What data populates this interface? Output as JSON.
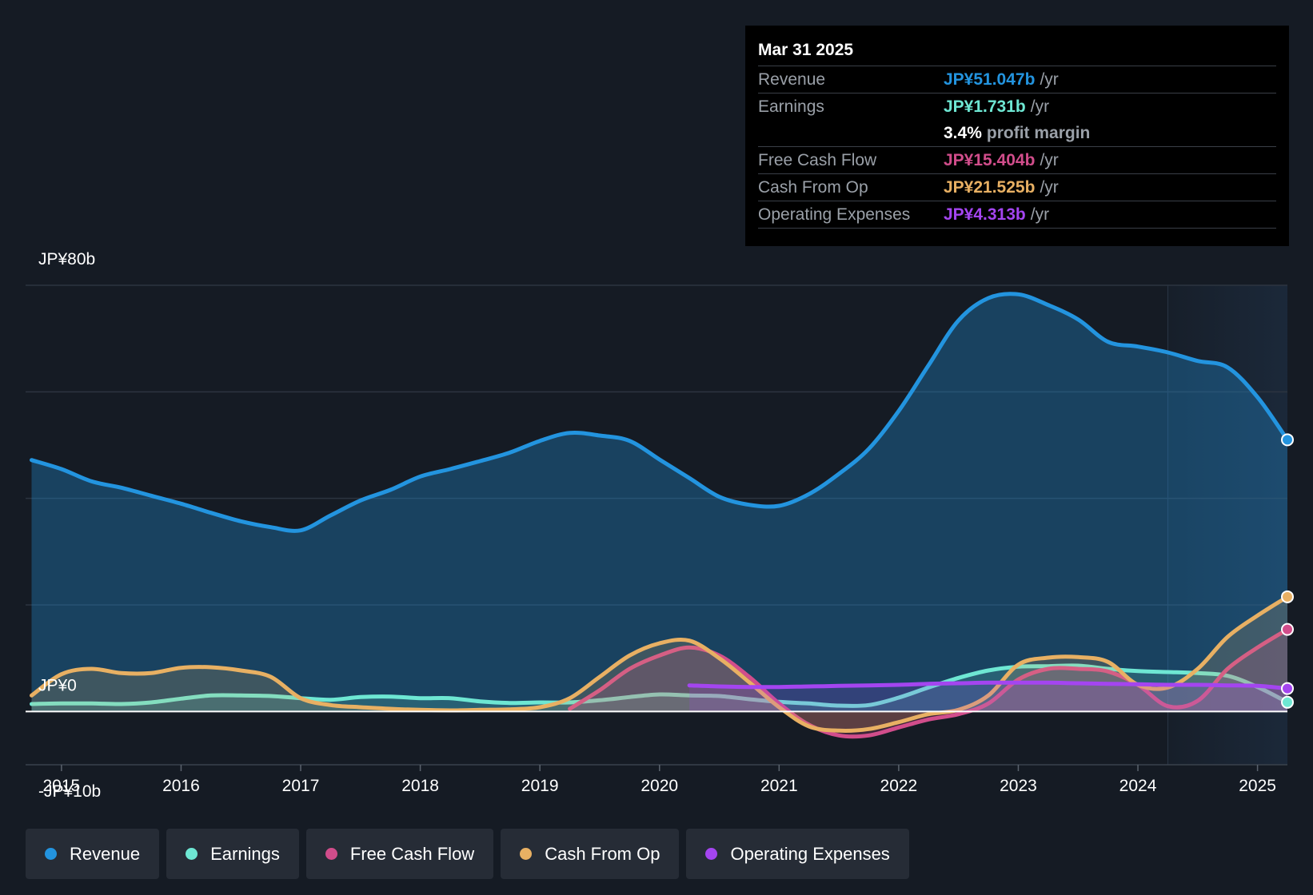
{
  "tooltip": {
    "date": "Mar 31 2025",
    "rows": [
      {
        "label": "Revenue",
        "value": "JP¥51.047b",
        "unit": "/yr",
        "color": "#2394df"
      },
      {
        "label": "Earnings",
        "value": "JP¥1.731b",
        "unit": "/yr",
        "color": "#6ee7d3"
      },
      {
        "label": "",
        "value": "3.4%",
        "unit": "profit margin",
        "color": "#ffffff"
      },
      {
        "label": "Free Cash Flow",
        "value": "JP¥15.404b",
        "unit": "/yr",
        "color": "#d14d8b"
      },
      {
        "label": "Cash From Op",
        "value": "JP¥21.525b",
        "unit": "/yr",
        "color": "#e8b063"
      },
      {
        "label": "Operating Expenses",
        "value": "JP¥4.313b",
        "unit": "/yr",
        "color": "#a445f0"
      }
    ]
  },
  "legend": [
    {
      "label": "Revenue",
      "color": "#2394df"
    },
    {
      "label": "Earnings",
      "color": "#6ee7d3"
    },
    {
      "label": "Free Cash Flow",
      "color": "#d14d8b"
    },
    {
      "label": "Cash From Op",
      "color": "#e8b063"
    },
    {
      "label": "Operating Expenses",
      "color": "#a445f0"
    }
  ],
  "chart_data": {
    "type": "area",
    "title": "",
    "xlabel": "",
    "ylabel": "",
    "ylim": [
      -10,
      80
    ],
    "xlim": [
      2014.7,
      2025.25
    ],
    "y_tick_labels": [
      {
        "value": 80,
        "label": "JP¥80b"
      },
      {
        "value": 0,
        "label": "JP¥0"
      },
      {
        "value": -10,
        "label": "-JP¥10b"
      }
    ],
    "gridlines": [
      80,
      60,
      40,
      20,
      0
    ],
    "x_ticks": [
      2015,
      2016,
      2017,
      2018,
      2019,
      2020,
      2021,
      2022,
      2023,
      2024,
      2025
    ],
    "x_tick_labels": [
      "2015",
      "2016",
      "2017",
      "2018",
      "2019",
      "2020",
      "2021",
      "2022",
      "2023",
      "2024",
      "2025"
    ],
    "highlight_from": 2024.25,
    "series": [
      {
        "name": "Revenue",
        "color": "#2394df",
        "fill": true,
        "x": [
          2014.75,
          2015.0,
          2015.25,
          2015.5,
          2015.75,
          2016.0,
          2016.25,
          2016.5,
          2016.75,
          2017.0,
          2017.25,
          2017.5,
          2017.75,
          2018.0,
          2018.25,
          2018.5,
          2018.75,
          2019.0,
          2019.25,
          2019.5,
          2019.75,
          2020.0,
          2020.25,
          2020.5,
          2020.75,
          2021.0,
          2021.25,
          2021.5,
          2021.75,
          2022.0,
          2022.25,
          2022.5,
          2022.75,
          2023.0,
          2023.25,
          2023.5,
          2023.75,
          2024.0,
          2024.25,
          2024.5,
          2024.75,
          2025.0,
          2025.25
        ],
        "y": [
          47.2,
          45.5,
          43.2,
          42.0,
          40.5,
          39.0,
          37.3,
          35.7,
          34.6,
          34.0,
          36.8,
          39.6,
          41.6,
          44.1,
          45.5,
          47.0,
          48.6,
          50.8,
          52.3,
          51.8,
          50.8,
          47.3,
          43.8,
          40.3,
          38.8,
          38.6,
          40.8,
          44.6,
          49.3,
          56.4,
          65.0,
          73.4,
          77.6,
          78.3,
          76.3,
          73.6,
          69.4,
          68.5,
          67.4,
          65.8,
          64.6,
          59.0,
          51.0
        ]
      },
      {
        "name": "Earnings",
        "color": "#6ee7d3",
        "fill": true,
        "x": [
          2014.75,
          2015.0,
          2015.25,
          2015.5,
          2015.75,
          2016.0,
          2016.25,
          2016.5,
          2016.75,
          2017.0,
          2017.25,
          2017.5,
          2017.75,
          2018.0,
          2018.25,
          2018.5,
          2018.75,
          2019.0,
          2019.25,
          2019.5,
          2019.75,
          2020.0,
          2020.25,
          2020.5,
          2020.75,
          2021.0,
          2021.25,
          2021.5,
          2021.75,
          2022.0,
          2022.25,
          2022.5,
          2022.75,
          2023.0,
          2023.25,
          2023.5,
          2023.75,
          2024.0,
          2024.25,
          2024.5,
          2024.75,
          2025.0,
          2025.25
        ],
        "y": [
          1.4,
          1.5,
          1.5,
          1.4,
          1.7,
          2.4,
          3.0,
          3.0,
          2.9,
          2.5,
          2.2,
          2.7,
          2.8,
          2.5,
          2.5,
          1.9,
          1.6,
          1.7,
          1.7,
          2.1,
          2.7,
          3.2,
          3.0,
          2.9,
          2.3,
          1.8,
          1.5,
          1.1,
          1.2,
          2.6,
          4.5,
          6.3,
          7.7,
          8.4,
          8.5,
          8.6,
          8.0,
          7.6,
          7.4,
          7.2,
          6.7,
          4.6,
          1.731
        ]
      },
      {
        "name": "Free Cash Flow",
        "color": "#d14d8b",
        "fill": true,
        "x": [
          2019.25,
          2019.5,
          2019.75,
          2020.0,
          2020.25,
          2020.5,
          2020.75,
          2021.0,
          2021.25,
          2021.5,
          2021.75,
          2022.0,
          2022.25,
          2022.5,
          2022.75,
          2023.0,
          2023.25,
          2023.5,
          2023.75,
          2024.0,
          2024.25,
          2024.5,
          2024.75,
          2025.0,
          2025.25
        ],
        "y": [
          0.5,
          4.0,
          8.0,
          10.5,
          12.0,
          10.5,
          6.5,
          1.5,
          -2.5,
          -4.5,
          -4.5,
          -3.0,
          -1.5,
          -0.5,
          1.5,
          6.0,
          8.0,
          8.0,
          7.5,
          5.0,
          1.0,
          2.0,
          8.0,
          12.0,
          15.404
        ]
      },
      {
        "name": "Cash From Op",
        "color": "#e8b063",
        "fill": true,
        "x": [
          2014.75,
          2015.0,
          2015.25,
          2015.5,
          2015.75,
          2016.0,
          2016.25,
          2016.5,
          2016.75,
          2017.0,
          2017.25,
          2017.5,
          2017.75,
          2018.0,
          2018.25,
          2018.5,
          2018.75,
          2019.0,
          2019.25,
          2019.5,
          2019.75,
          2020.0,
          2020.25,
          2020.5,
          2020.75,
          2021.0,
          2021.25,
          2021.5,
          2021.75,
          2022.0,
          2022.25,
          2022.5,
          2022.75,
          2023.0,
          2023.25,
          2023.5,
          2023.75,
          2024.0,
          2024.25,
          2024.5,
          2024.75,
          2025.0,
          2025.25
        ],
        "y": [
          3.0,
          7.0,
          8.0,
          7.2,
          7.2,
          8.2,
          8.3,
          7.7,
          6.5,
          2.5,
          1.2,
          0.8,
          0.5,
          0.3,
          0.2,
          0.3,
          0.4,
          0.8,
          2.5,
          6.5,
          10.5,
          12.8,
          13.3,
          10.0,
          5.5,
          0.8,
          -2.8,
          -3.6,
          -3.3,
          -2.0,
          -0.5,
          0.3,
          3.0,
          8.8,
          10.1,
          10.2,
          9.3,
          5.0,
          4.5,
          8.0,
          14.0,
          18.0,
          21.525
        ]
      },
      {
        "name": "Operating Expenses",
        "color": "#a445f0",
        "fill": true,
        "x": [
          2020.25,
          2020.5,
          2020.75,
          2021.0,
          2021.25,
          2021.5,
          2021.75,
          2022.0,
          2022.25,
          2022.5,
          2022.75,
          2023.0,
          2023.25,
          2023.5,
          2023.75,
          2024.0,
          2024.25,
          2024.5,
          2024.75,
          2025.0,
          2025.25
        ],
        "y": [
          4.9,
          4.7,
          4.6,
          4.6,
          4.7,
          4.8,
          4.9,
          5.0,
          5.2,
          5.3,
          5.4,
          5.4,
          5.4,
          5.3,
          5.2,
          5.1,
          5.0,
          5.0,
          4.9,
          4.8,
          4.313
        ]
      }
    ]
  }
}
